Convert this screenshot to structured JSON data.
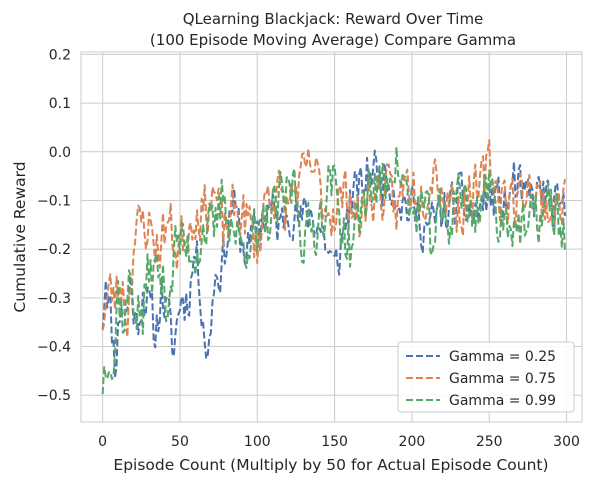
{
  "chart_data": {
    "type": "line",
    "title_lines": [
      "QLearning Blackjack: Reward Over Time",
      "(100 Episode Moving Average) Compare Gamma"
    ],
    "xlabel": "Episode Count (Multiply by 50 for Actual Episode Count)",
    "ylabel": "Cumulative Reward",
    "xlim": [
      -14,
      310
    ],
    "ylim": [
      -0.555,
      0.205
    ],
    "x_ticks": [
      0,
      50,
      100,
      150,
      200,
      250,
      300
    ],
    "y_ticks": [
      -0.5,
      -0.4,
      -0.3,
      -0.2,
      -0.1,
      0.0,
      0.1,
      0.2
    ],
    "x_tick_labels": [
      "0",
      "50",
      "100",
      "150",
      "200",
      "250",
      "300"
    ],
    "y_tick_labels": [
      "−0.5",
      "−0.4",
      "−0.3",
      "−0.2",
      "−0.1",
      "0.0",
      "0.1",
      "0.2"
    ],
    "grid": true,
    "legend_position": "lower-right",
    "x_range": [
      0,
      299
    ],
    "series": [
      {
        "name": "Gamma = 0.25",
        "color": "#4c72b0",
        "linestyle": "dashed",
        "keypoints": [
          [
            0,
            -0.34
          ],
          [
            2,
            -0.24
          ],
          [
            5,
            -0.33
          ],
          [
            8,
            -0.43
          ],
          [
            12,
            -0.3
          ],
          [
            15,
            -0.34
          ],
          [
            18,
            -0.27
          ],
          [
            22,
            -0.36
          ],
          [
            26,
            -0.28
          ],
          [
            30,
            -0.32
          ],
          [
            34,
            -0.38
          ],
          [
            38,
            -0.28
          ],
          [
            42,
            -0.34
          ],
          [
            46,
            -0.41
          ],
          [
            50,
            -0.3
          ],
          [
            55,
            -0.3
          ],
          [
            60,
            -0.2
          ],
          [
            64,
            -0.3
          ],
          [
            68,
            -0.43
          ],
          [
            72,
            -0.26
          ],
          [
            78,
            -0.22
          ],
          [
            84,
            -0.1
          ],
          [
            90,
            -0.19
          ],
          [
            96,
            -0.2
          ],
          [
            100,
            -0.15
          ],
          [
            108,
            -0.12
          ],
          [
            115,
            -0.16
          ],
          [
            120,
            -0.1
          ],
          [
            128,
            -0.15
          ],
          [
            134,
            -0.12
          ],
          [
            142,
            -0.16
          ],
          [
            150,
            -0.25
          ],
          [
            155,
            -0.18
          ],
          [
            160,
            -0.1
          ],
          [
            167,
            -0.08
          ],
          [
            174,
            -0.03
          ],
          [
            180,
            -0.05
          ],
          [
            186,
            -0.05
          ],
          [
            194,
            -0.1
          ],
          [
            200,
            -0.12
          ],
          [
            206,
            -0.14
          ],
          [
            212,
            -0.16
          ],
          [
            218,
            -0.13
          ],
          [
            224,
            -0.12
          ],
          [
            230,
            -0.1
          ],
          [
            236,
            -0.12
          ],
          [
            242,
            -0.13
          ],
          [
            248,
            -0.09
          ],
          [
            254,
            -0.1
          ],
          [
            260,
            -0.12
          ],
          [
            266,
            -0.06
          ],
          [
            272,
            -0.1
          ],
          [
            278,
            -0.1
          ],
          [
            284,
            -0.08
          ],
          [
            290,
            -0.11
          ],
          [
            295,
            -0.13
          ],
          [
            299,
            -0.13
          ]
        ],
        "amplitude": 0.075,
        "seed": 11
      },
      {
        "name": "Gamma = 0.75",
        "color": "#dd8452",
        "linestyle": "dashed",
        "keypoints": [
          [
            0,
            -0.34
          ],
          [
            4,
            -0.29
          ],
          [
            8,
            -0.3
          ],
          [
            12,
            -0.26
          ],
          [
            16,
            -0.34
          ],
          [
            20,
            -0.18
          ],
          [
            25,
            -0.15
          ],
          [
            30,
            -0.15
          ],
          [
            36,
            -0.2
          ],
          [
            42,
            -0.14
          ],
          [
            48,
            -0.2
          ],
          [
            54,
            -0.16
          ],
          [
            60,
            -0.12
          ],
          [
            66,
            -0.12
          ],
          [
            72,
            -0.08
          ],
          [
            78,
            -0.17
          ],
          [
            84,
            -0.13
          ],
          [
            90,
            -0.12
          ],
          [
            96,
            -0.16
          ],
          [
            100,
            -0.2
          ],
          [
            106,
            -0.08
          ],
          [
            112,
            -0.08
          ],
          [
            118,
            -0.12
          ],
          [
            124,
            -0.08
          ],
          [
            130,
            -0.06
          ],
          [
            136,
            -0.03
          ],
          [
            142,
            -0.1
          ],
          [
            148,
            -0.12
          ],
          [
            154,
            -0.1
          ],
          [
            160,
            -0.08
          ],
          [
            166,
            -0.15
          ],
          [
            172,
            -0.09
          ],
          [
            178,
            -0.08
          ],
          [
            184,
            -0.09
          ],
          [
            190,
            -0.12
          ],
          [
            196,
            -0.06
          ],
          [
            202,
            -0.07
          ],
          [
            208,
            -0.08
          ],
          [
            214,
            -0.02
          ],
          [
            220,
            -0.08
          ],
          [
            226,
            -0.1
          ],
          [
            232,
            -0.12
          ],
          [
            238,
            -0.08
          ],
          [
            244,
            -0.09
          ],
          [
            250,
            -0.02
          ],
          [
            256,
            -0.08
          ],
          [
            262,
            -0.09
          ],
          [
            268,
            -0.11
          ],
          [
            274,
            -0.06
          ],
          [
            280,
            -0.1
          ],
          [
            286,
            -0.1
          ],
          [
            292,
            -0.13
          ],
          [
            299,
            -0.08
          ]
        ],
        "amplitude": 0.08,
        "seed": 23
      },
      {
        "name": "Gamma = 0.99",
        "color": "#55a868",
        "linestyle": "dashed",
        "keypoints": [
          [
            0,
            -0.47
          ],
          [
            4,
            -0.38
          ],
          [
            7,
            -0.45
          ],
          [
            10,
            -0.28
          ],
          [
            14,
            -0.35
          ],
          [
            18,
            -0.26
          ],
          [
            22,
            -0.32
          ],
          [
            26,
            -0.34
          ],
          [
            30,
            -0.24
          ],
          [
            36,
            -0.25
          ],
          [
            42,
            -0.3
          ],
          [
            48,
            -0.18
          ],
          [
            54,
            -0.2
          ],
          [
            60,
            -0.2
          ],
          [
            66,
            -0.15
          ],
          [
            72,
            -0.18
          ],
          [
            78,
            -0.08
          ],
          [
            84,
            -0.15
          ],
          [
            90,
            -0.2
          ],
          [
            96,
            -0.15
          ],
          [
            100,
            -0.2
          ],
          [
            106,
            -0.15
          ],
          [
            112,
            -0.12
          ],
          [
            118,
            -0.1
          ],
          [
            124,
            -0.06
          ],
          [
            130,
            -0.18
          ],
          [
            136,
            -0.16
          ],
          [
            142,
            -0.12
          ],
          [
            148,
            -0.05
          ],
          [
            154,
            -0.14
          ],
          [
            160,
            -0.2
          ],
          [
            166,
            -0.14
          ],
          [
            172,
            -0.06
          ],
          [
            178,
            -0.08
          ],
          [
            184,
            -0.06
          ],
          [
            188,
            0.0
          ],
          [
            194,
            -0.06
          ],
          [
            200,
            -0.14
          ],
          [
            206,
            -0.1
          ],
          [
            212,
            -0.18
          ],
          [
            218,
            -0.14
          ],
          [
            224,
            -0.15
          ],
          [
            230,
            -0.05
          ],
          [
            236,
            -0.13
          ],
          [
            242,
            -0.12
          ],
          [
            248,
            -0.06
          ],
          [
            254,
            -0.12
          ],
          [
            260,
            -0.14
          ],
          [
            266,
            -0.13
          ],
          [
            272,
            -0.17
          ],
          [
            278,
            -0.15
          ],
          [
            284,
            -0.12
          ],
          [
            290,
            -0.12
          ],
          [
            295,
            -0.14
          ],
          [
            299,
            -0.17
          ]
        ],
        "amplitude": 0.085,
        "seed": 37
      }
    ]
  }
}
